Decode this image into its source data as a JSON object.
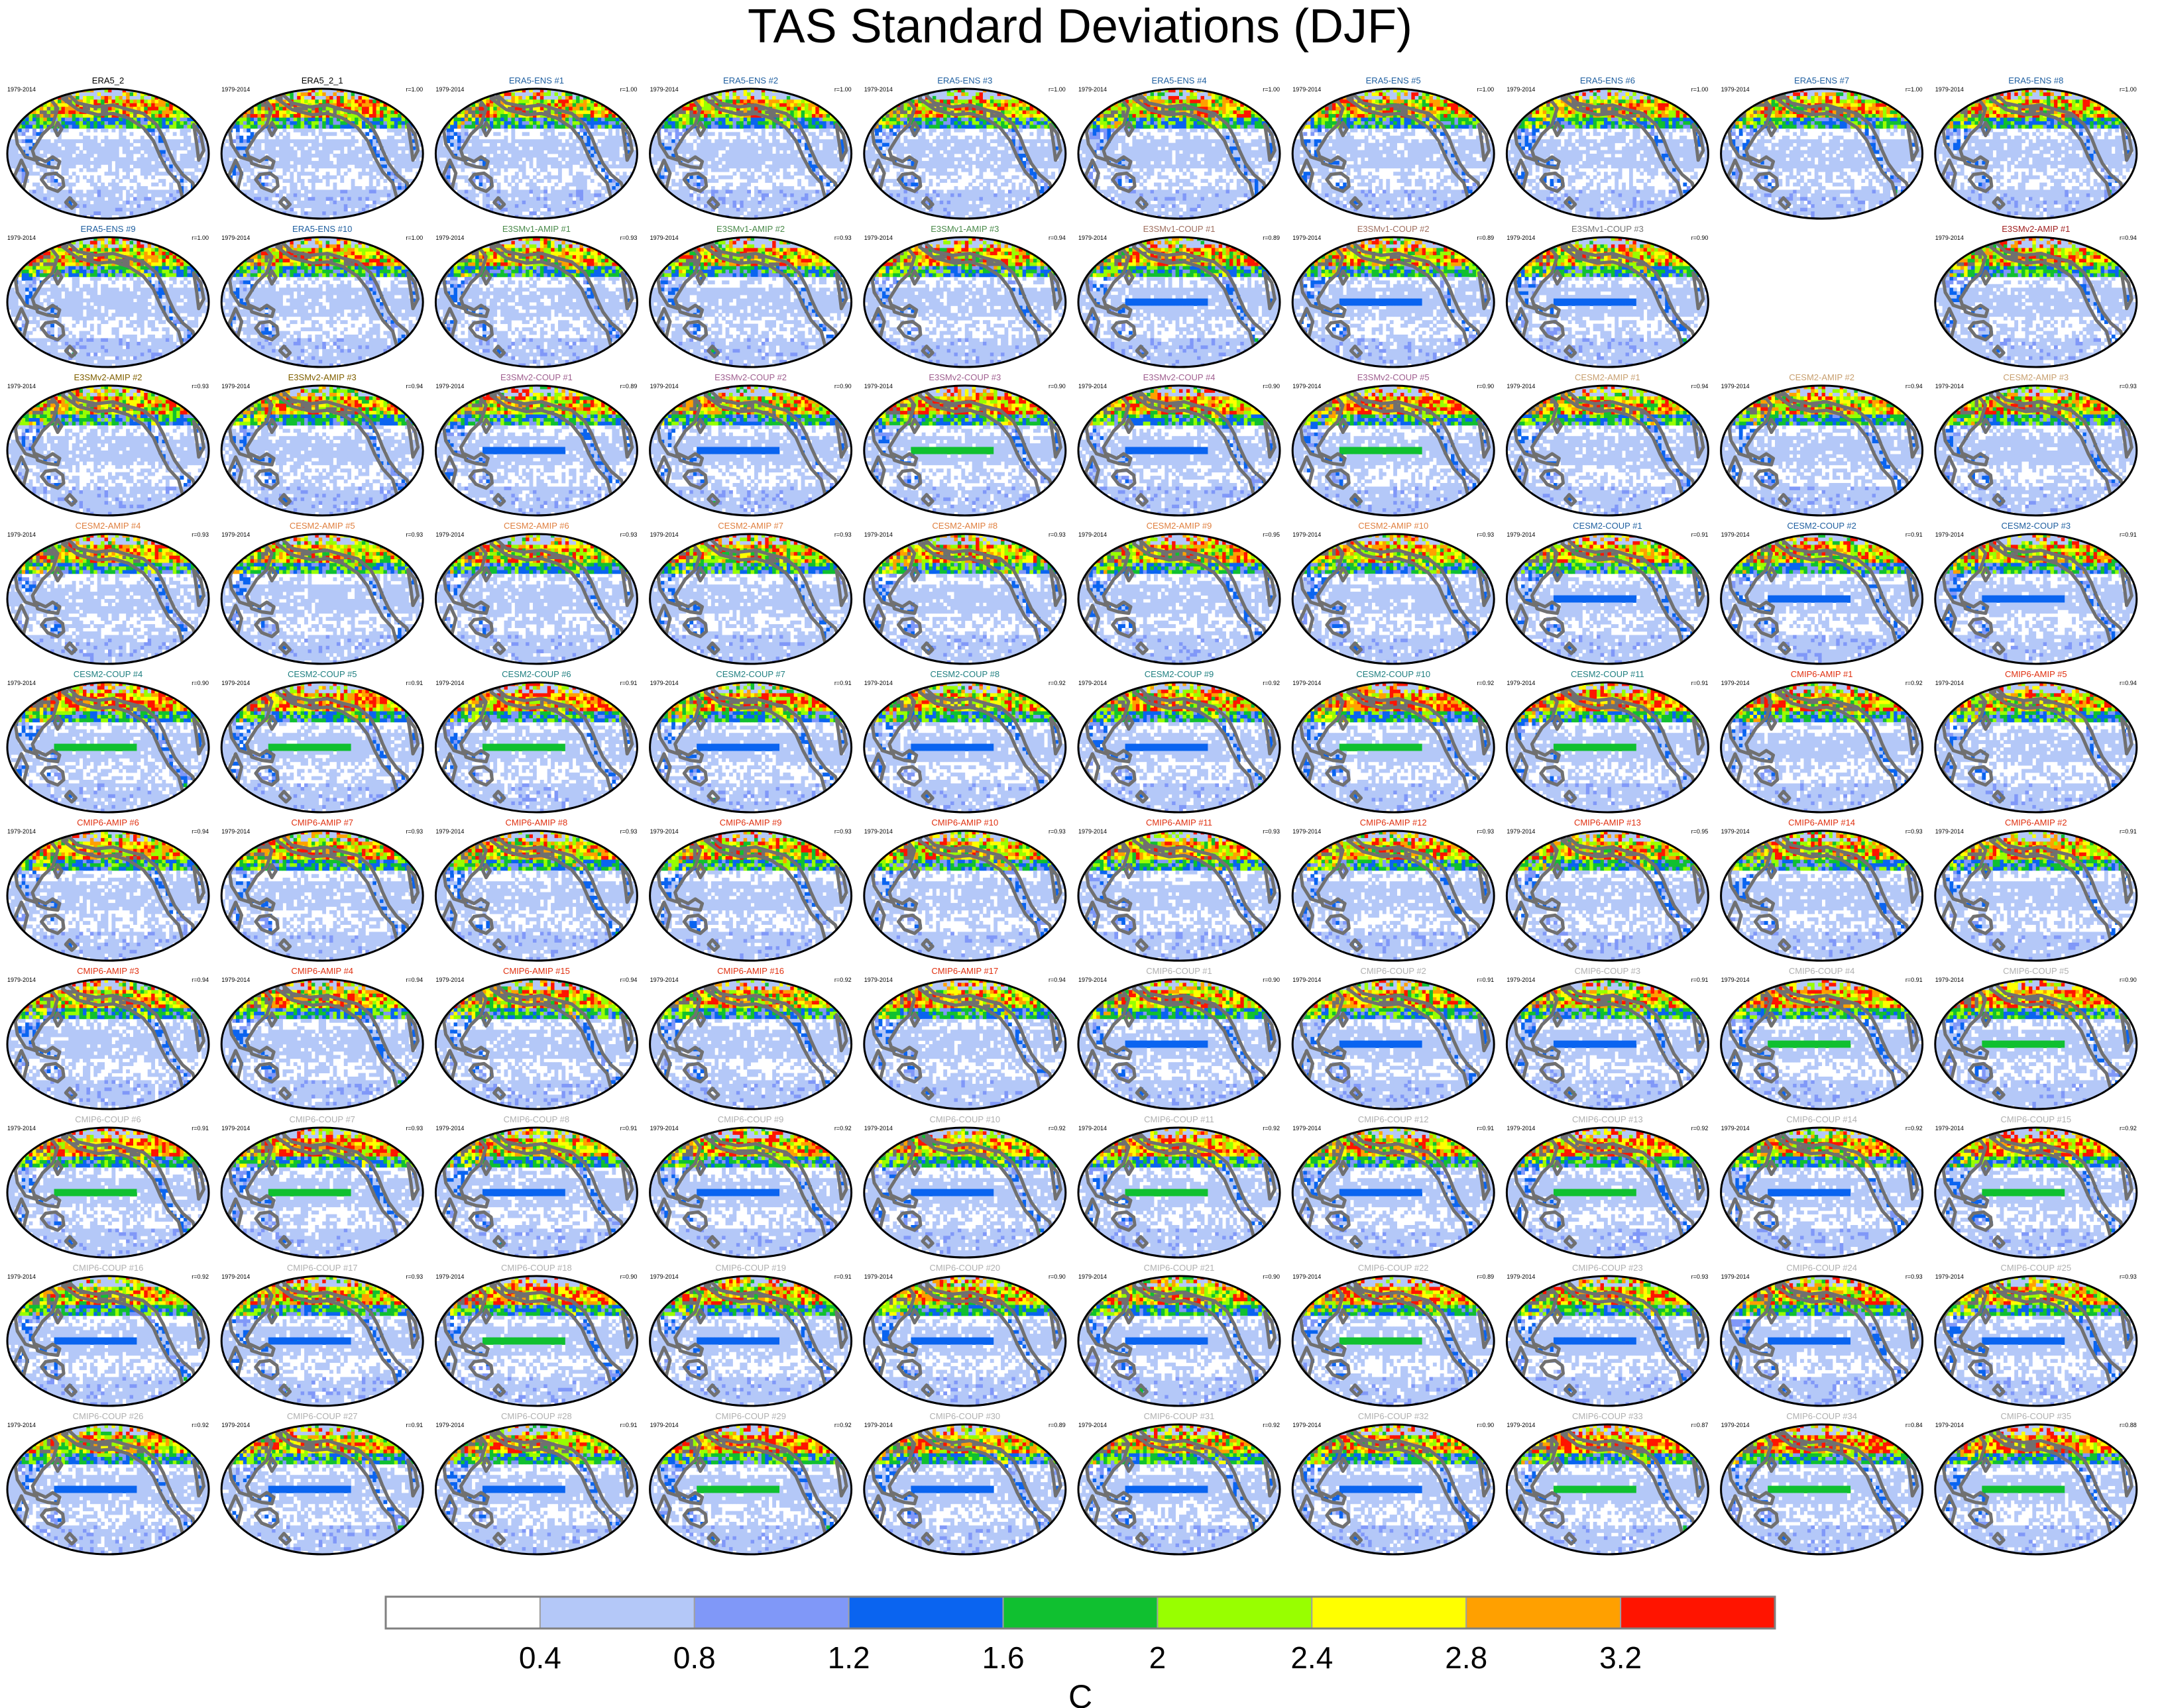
{
  "title": "TAS Standard Deviations (DJF)",
  "chart_data": {
    "type": "heatmap",
    "title": "TAS Standard Deviations (DJF)",
    "map_projection": "robinson",
    "grid_columns": 10,
    "grid_rows": 10,
    "period_label": "1979-2014",
    "panels": [
      {
        "name": "ERA5_2",
        "r": "",
        "color": "#000000",
        "variant": 0
      },
      {
        "name": "ERA5_2_1",
        "r": "r=1.00",
        "color": "#000000",
        "variant": 0
      },
      {
        "name": "ERA5-ENS   #1",
        "r": "r=1.00",
        "color": "#1f5fa0",
        "variant": 0
      },
      {
        "name": "ERA5-ENS   #2",
        "r": "r=1.00",
        "color": "#1f5fa0",
        "variant": 0
      },
      {
        "name": "ERA5-ENS   #3",
        "r": "r=1.00",
        "color": "#1f5fa0",
        "variant": 0
      },
      {
        "name": "ERA5-ENS   #4",
        "r": "r=1.00",
        "color": "#1f5fa0",
        "variant": 0
      },
      {
        "name": "ERA5-ENS   #5",
        "r": "r=1.00",
        "color": "#1f5fa0",
        "variant": 0
      },
      {
        "name": "ERA5-ENS   #6",
        "r": "r=1.00",
        "color": "#1f5fa0",
        "variant": 0
      },
      {
        "name": "ERA5-ENS   #7",
        "r": "r=1.00",
        "color": "#1f5fa0",
        "variant": 0
      },
      {
        "name": "ERA5-ENS   #8",
        "r": "r=1.00",
        "color": "#1f5fa0",
        "variant": 0
      },
      {
        "name": "ERA5-ENS   #9",
        "r": "r=1.00",
        "color": "#1f5fa0",
        "variant": 0
      },
      {
        "name": "ERA5-ENS   #10",
        "r": "r=1.00",
        "color": "#1f5fa0",
        "variant": 0
      },
      {
        "name": "E3SMv1-AMIP #1",
        "r": "r=0.93",
        "color": "#4a8a4a",
        "variant": 1
      },
      {
        "name": "E3SMv1-AMIP #2",
        "r": "r=0.93",
        "color": "#4a8a4a",
        "variant": 1
      },
      {
        "name": "E3SMv1-AMIP #3",
        "r": "r=0.94",
        "color": "#4a8a4a",
        "variant": 1
      },
      {
        "name": "E3SMv1-COUP #1",
        "r": "r=0.89",
        "color": "#a07060",
        "variant": 2
      },
      {
        "name": "E3SMv1-COUP #2",
        "r": "r=0.89",
        "color": "#a07060",
        "variant": 2
      },
      {
        "name": "E3SMv1-COUP #3",
        "r": "r=0.90",
        "color": "#777777",
        "variant": 2
      },
      null,
      {
        "name": "E3SMv2-AMIP #1",
        "r": "r=0.94",
        "color": "#a02020",
        "variant": 1
      },
      {
        "name": "E3SMv2-AMIP #2",
        "r": "r=0.93",
        "color": "#806000",
        "variant": 1
      },
      {
        "name": "E3SMv2-AMIP #3",
        "r": "r=0.94",
        "color": "#806000",
        "variant": 1
      },
      {
        "name": "E3SMv2-COUP #1",
        "r": "r=0.89",
        "color": "#a06090",
        "variant": 2
      },
      {
        "name": "E3SMv2-COUP #2",
        "r": "r=0.90",
        "color": "#a06090",
        "variant": 2
      },
      {
        "name": "E3SMv2-COUP #3",
        "r": "r=0.90",
        "color": "#a06090",
        "variant": 3
      },
      {
        "name": "E3SMv2-COUP #4",
        "r": "r=0.90",
        "color": "#a06090",
        "variant": 2
      },
      {
        "name": "E3SMv2-COUP #5",
        "r": "r=0.90",
        "color": "#a06090",
        "variant": 3
      },
      {
        "name": "CESM2-AMIP #1",
        "r": "r=0.94",
        "color": "#c8a070",
        "variant": 1
      },
      {
        "name": "CESM2-AMIP #2",
        "r": "r=0.94",
        "color": "#c8a070",
        "variant": 1
      },
      {
        "name": "CESM2-AMIP #3",
        "r": "r=0.93",
        "color": "#c8a070",
        "variant": 1
      },
      {
        "name": "CESM2-AMIP #4",
        "r": "r=0.93",
        "color": "#e08040",
        "variant": 1
      },
      {
        "name": "CESM2-AMIP #5",
        "r": "r=0.93",
        "color": "#e08040",
        "variant": 1
      },
      {
        "name": "CESM2-AMIP #6",
        "r": "r=0.93",
        "color": "#e08040",
        "variant": 1
      },
      {
        "name": "CESM2-AMIP #7",
        "r": "r=0.93",
        "color": "#e08040",
        "variant": 1
      },
      {
        "name": "CESM2-AMIP #8",
        "r": "r=0.93",
        "color": "#e08040",
        "variant": 1
      },
      {
        "name": "CESM2-AMIP #9",
        "r": "r=0.95",
        "color": "#e08040",
        "variant": 1
      },
      {
        "name": "CESM2-AMIP #10",
        "r": "r=0.93",
        "color": "#e08040",
        "variant": 1
      },
      {
        "name": "CESM2-COUP #1",
        "r": "r=0.91",
        "color": "#1f5fa0",
        "variant": 2
      },
      {
        "name": "CESM2-COUP #2",
        "r": "r=0.91",
        "color": "#1f5fa0",
        "variant": 2
      },
      {
        "name": "CESM2-COUP #3",
        "r": "r=0.91",
        "color": "#1f5fa0",
        "variant": 2
      },
      {
        "name": "CESM2-COUP #4",
        "r": "r=0.90",
        "color": "#1f7f80",
        "variant": 3
      },
      {
        "name": "CESM2-COUP #5",
        "r": "r=0.91",
        "color": "#1f7f80",
        "variant": 3
      },
      {
        "name": "CESM2-COUP #6",
        "r": "r=0.91",
        "color": "#1f7f80",
        "variant": 3
      },
      {
        "name": "CESM2-COUP #7",
        "r": "r=0.91",
        "color": "#1f7f80",
        "variant": 2
      },
      {
        "name": "CESM2-COUP #8",
        "r": "r=0.92",
        "color": "#1f7f80",
        "variant": 2
      },
      {
        "name": "CESM2-COUP #9",
        "r": "r=0.92",
        "color": "#1f7f80",
        "variant": 2
      },
      {
        "name": "CESM2-COUP #10",
        "r": "r=0.92",
        "color": "#1f7f80",
        "variant": 3
      },
      {
        "name": "CESM2-COUP #11",
        "r": "r=0.91",
        "color": "#1f7f80",
        "variant": 3
      },
      {
        "name": "CMIP6-AMIP #1",
        "r": "r=0.92",
        "color": "#e03010",
        "variant": 1
      },
      {
        "name": "CMIP6-AMIP #5",
        "r": "r=0.94",
        "color": "#e03010",
        "variant": 1
      },
      {
        "name": "CMIP6-AMIP #6",
        "r": "r=0.94",
        "color": "#e03010",
        "variant": 1
      },
      {
        "name": "CMIP6-AMIP #7",
        "r": "r=0.93",
        "color": "#e03010",
        "variant": 1
      },
      {
        "name": "CMIP6-AMIP #8",
        "r": "r=0.93",
        "color": "#e03010",
        "variant": 1
      },
      {
        "name": "CMIP6-AMIP #9",
        "r": "r=0.93",
        "color": "#e03010",
        "variant": 1
      },
      {
        "name": "CMIP6-AMIP #10",
        "r": "r=0.93",
        "color": "#e03010",
        "variant": 1
      },
      {
        "name": "CMIP6-AMIP #11",
        "r": "r=0.93",
        "color": "#e03010",
        "variant": 1
      },
      {
        "name": "CMIP6-AMIP #12",
        "r": "r=0.93",
        "color": "#e03010",
        "variant": 1
      },
      {
        "name": "CMIP6-AMIP #13",
        "r": "r=0.95",
        "color": "#e03010",
        "variant": 1
      },
      {
        "name": "CMIP6-AMIP #14",
        "r": "r=0.93",
        "color": "#e03010",
        "variant": 1
      },
      {
        "name": "CMIP6-AMIP #2",
        "r": "r=0.91",
        "color": "#e03010",
        "variant": 1
      },
      {
        "name": "CMIP6-AMIP  #3",
        "r": "r=0.94",
        "color": "#e03010",
        "variant": 1
      },
      {
        "name": "CMIP6-AMIP #4",
        "r": "r=0.94",
        "color": "#e03010",
        "variant": 1
      },
      {
        "name": "CMIP6-AMIP #15",
        "r": "r=0.94",
        "color": "#e03010",
        "variant": 1
      },
      {
        "name": "CMIP6-AMIP #16",
        "r": "r=0.92",
        "color": "#e03010",
        "variant": 1
      },
      {
        "name": "CMIP6-AMIP #17",
        "r": "r=0.94",
        "color": "#e03010",
        "variant": 1
      },
      {
        "name": "CMIP6-COUP #1",
        "r": "r=0.90",
        "color": "#b0b0b0",
        "variant": 2
      },
      {
        "name": "CMIP6-COUP #2",
        "r": "r=0.91",
        "color": "#b0b0b0",
        "variant": 2
      },
      {
        "name": "CMIP6-COUP #3",
        "r": "r=0.91",
        "color": "#b0b0b0",
        "variant": 2
      },
      {
        "name": "CMIP6-COUP #4",
        "r": "r=0.91",
        "color": "#b0b0b0",
        "variant": 3
      },
      {
        "name": "CMIP6-COUP #5",
        "r": "r=0.90",
        "color": "#b0b0b0",
        "variant": 3
      },
      {
        "name": "CMIP6-COUP #6",
        "r": "r=0.91",
        "color": "#b0b0b0",
        "variant": 3
      },
      {
        "name": "CMIP6-COUP #7",
        "r": "r=0.93",
        "color": "#b0b0b0",
        "variant": 3
      },
      {
        "name": "CMIP6-COUP #8",
        "r": "r=0.91",
        "color": "#b0b0b0",
        "variant": 2
      },
      {
        "name": "CMIP6-COUP #9",
        "r": "r=0.92",
        "color": "#b0b0b0",
        "variant": 2
      },
      {
        "name": "CMIP6-COUP #10",
        "r": "r=0.92",
        "color": "#b0b0b0",
        "variant": 2
      },
      {
        "name": "CMIP6-COUP #11",
        "r": "r=0.92",
        "color": "#b0b0b0",
        "variant": 3
      },
      {
        "name": "CMIP6-COUP #12",
        "r": "r=0.91",
        "color": "#b0b0b0",
        "variant": 2
      },
      {
        "name": "CMIP6-COUP #13",
        "r": "r=0.92",
        "color": "#b0b0b0",
        "variant": 3
      },
      {
        "name": "CMIP6-COUP #14",
        "r": "r=0.92",
        "color": "#b0b0b0",
        "variant": 2
      },
      {
        "name": "CMIP6-COUP #15",
        "r": "r=0.92",
        "color": "#b0b0b0",
        "variant": 3
      },
      {
        "name": "CMIP6-COUP #16",
        "r": "r=0.92",
        "color": "#b0b0b0",
        "variant": 2
      },
      {
        "name": "CMIP6-COUP #17",
        "r": "r=0.93",
        "color": "#b0b0b0",
        "variant": 2
      },
      {
        "name": "CMIP6-COUP #18",
        "r": "r=0.90",
        "color": "#b0b0b0",
        "variant": 3
      },
      {
        "name": "CMIP6-COUP #19",
        "r": "r=0.91",
        "color": "#b0b0b0",
        "variant": 2
      },
      {
        "name": "CMIP6-COUP #20",
        "r": "r=0.90",
        "color": "#b0b0b0",
        "variant": 2
      },
      {
        "name": "CMIP6-COUP #21",
        "r": "r=0.90",
        "color": "#b0b0b0",
        "variant": 2
      },
      {
        "name": "CMIP6-COUP #22",
        "r": "r=0.89",
        "color": "#b0b0b0",
        "variant": 3
      },
      {
        "name": "CMIP6-COUP #23",
        "r": "r=0.93",
        "color": "#b0b0b0",
        "variant": 2
      },
      {
        "name": "CMIP6-COUP #24",
        "r": "r=0.93",
        "color": "#b0b0b0",
        "variant": 2
      },
      {
        "name": "CMIP6-COUP #25",
        "r": "r=0.93",
        "color": "#b0b0b0",
        "variant": 2
      },
      {
        "name": "CMIP6-COUP #26",
        "r": "r=0.92",
        "color": "#b0b0b0",
        "variant": 2
      },
      {
        "name": "CMIP6-COUP #27",
        "r": "r=0.91",
        "color": "#b0b0b0",
        "variant": 2
      },
      {
        "name": "CMIP6-COUP #28",
        "r": "r=0.91",
        "color": "#b0b0b0",
        "variant": 2
      },
      {
        "name": "CMIP6-COUP #29",
        "r": "r=0.92",
        "color": "#b0b0b0",
        "variant": 3
      },
      {
        "name": "CMIP6-COUP #30",
        "r": "r=0.89",
        "color": "#b0b0b0",
        "variant": 2
      },
      {
        "name": "CMIP6-COUP #31",
        "r": "r=0.92",
        "color": "#b0b0b0",
        "variant": 2
      },
      {
        "name": "CMIP6-COUP #32",
        "r": "r=0.90",
        "color": "#b0b0b0",
        "variant": 2
      },
      {
        "name": "CMIP6-COUP #33",
        "r": "r=0.87",
        "color": "#b0b0b0",
        "variant": 3
      },
      {
        "name": "CMIP6-COUP #34",
        "r": "r=0.84",
        "color": "#b0b0b0",
        "variant": 3
      },
      {
        "name": "CMIP6-COUP #35",
        "r": "r=0.88",
        "color": "#b0b0b0",
        "variant": 3
      }
    ],
    "colorbar": {
      "unit": "C",
      "levels": [
        "0.4",
        "0.8",
        "1.2",
        "1.6",
        "2",
        "2.4",
        "2.8",
        "3.2"
      ],
      "colors": [
        "#ffffff",
        "#b4c8f8",
        "#8098f8",
        "#0a64f0",
        "#10c030",
        "#98ff00",
        "#ffff00",
        "#ffa000",
        "#ff1400"
      ]
    }
  }
}
